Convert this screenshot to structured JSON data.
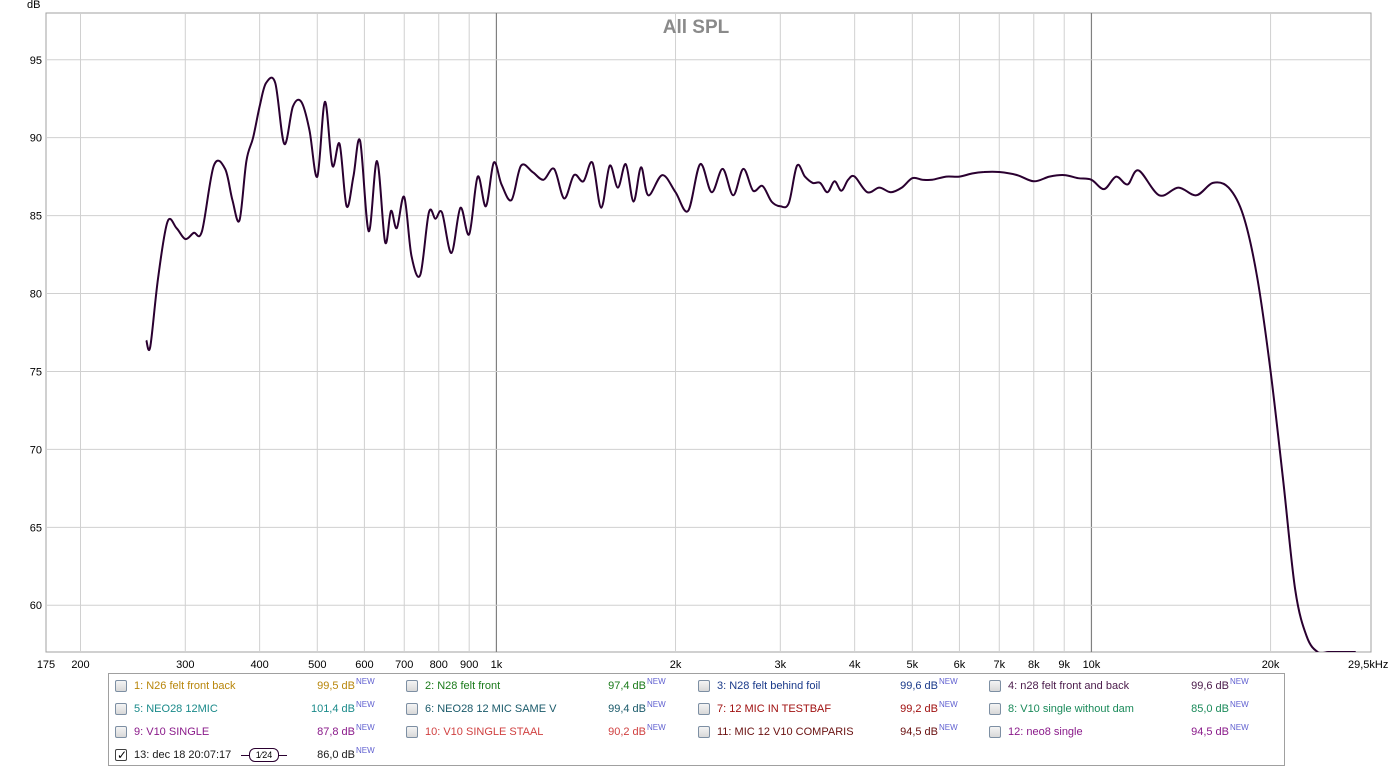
{
  "chart_data": {
    "type": "line",
    "title": "All SPL",
    "ylabel": "dB",
    "xlabel": "",
    "x_scale": "log",
    "xlim": [
      175,
      29500
    ],
    "ylim": [
      57,
      98
    ],
    "yticks": [
      60,
      65,
      70,
      75,
      80,
      85,
      90,
      95
    ],
    "xtick_values": [
      175,
      200,
      300,
      400,
      500,
      600,
      700,
      800,
      900,
      1000,
      2000,
      3000,
      4000,
      5000,
      6000,
      7000,
      8000,
      9000,
      10000,
      20000,
      29500
    ],
    "xtick_labels": [
      "175",
      "200",
      "300",
      "400",
      "500",
      "600",
      "700",
      "800",
      "900",
      "1k",
      "2k",
      "3k",
      "4k",
      "5k",
      "6k",
      "7k",
      "8k",
      "9k",
      "10k",
      "20k",
      "29,5kHz"
    ],
    "major_x": [
      1000,
      10000
    ],
    "grid": true,
    "series": [
      {
        "name": "13: dec 18 20:07:17",
        "color": "#2a0030",
        "x": [
          258,
          262,
          270,
          280,
          290,
          300,
          310,
          320,
          335,
          350,
          360,
          370,
          380,
          390,
          400,
          410,
          425,
          440,
          455,
          470,
          485,
          500,
          515,
          530,
          545,
          560,
          575,
          590,
          610,
          630,
          650,
          665,
          680,
          700,
          720,
          745,
          770,
          790,
          810,
          840,
          870,
          900,
          930,
          960,
          990,
          1020,
          1060,
          1100,
          1150,
          1200,
          1250,
          1300,
          1350,
          1400,
          1450,
          1500,
          1550,
          1600,
          1650,
          1700,
          1750,
          1800,
          1900,
          2000,
          2100,
          2200,
          2300,
          2400,
          2500,
          2600,
          2700,
          2800,
          2900,
          3000,
          3100,
          3200,
          3300,
          3400,
          3500,
          3600,
          3700,
          3800,
          3900,
          4000,
          4200,
          4400,
          4600,
          4800,
          5000,
          5200,
          5400,
          5700,
          6000,
          6300,
          6600,
          7000,
          7500,
          8000,
          8500,
          9000,
          9500,
          10000,
          10500,
          11000,
          11500,
          12000,
          13000,
          14000,
          15000,
          16000,
          17000,
          18000,
          19000,
          20000,
          21000,
          22000,
          23000,
          24000,
          25000,
          26000,
          27000,
          27800
        ],
        "y": [
          77.0,
          76.6,
          81.0,
          84.6,
          84.2,
          83.5,
          83.9,
          84.0,
          88.2,
          88.0,
          86.0,
          84.7,
          88.5,
          90.0,
          92.0,
          93.5,
          93.5,
          89.6,
          92.0,
          92.3,
          90.5,
          87.5,
          92.3,
          88.2,
          89.6,
          85.6,
          87.5,
          89.8,
          84.0,
          88.5,
          83.3,
          85.3,
          84.2,
          86.2,
          82.4,
          81.2,
          85.2,
          84.8,
          85.2,
          82.6,
          85.5,
          83.8,
          87.5,
          85.6,
          88.4,
          87.0,
          86.0,
          88.2,
          87.8,
          87.3,
          88.0,
          86.1,
          87.6,
          87.2,
          88.4,
          85.5,
          88.2,
          86.8,
          88.3,
          85.9,
          88.1,
          86.3,
          87.6,
          86.5,
          85.3,
          88.3,
          86.5,
          88.0,
          86.3,
          88.0,
          86.6,
          86.9,
          85.9,
          85.6,
          85.8,
          88.2,
          87.5,
          87.1,
          87.1,
          86.5,
          87.2,
          86.6,
          87.3,
          87.5,
          86.5,
          86.8,
          86.5,
          86.8,
          87.4,
          87.3,
          87.3,
          87.5,
          87.5,
          87.7,
          87.8,
          87.8,
          87.6,
          87.2,
          87.5,
          87.6,
          87.4,
          87.3,
          86.7,
          87.5,
          87.0,
          87.9,
          86.3,
          86.8,
          86.3,
          87.1,
          86.8,
          85.0,
          81.0,
          75.0,
          68.0,
          61.0,
          58.0,
          57.0,
          57.0,
          57.0,
          57.0,
          57.0
        ]
      }
    ]
  },
  "legend": [
    {
      "label": "1: N26 felt front back",
      "value": "99,5 dB",
      "new": "NEW",
      "color": "#b8860b",
      "checked": false
    },
    {
      "label": "2: N28 felt front",
      "value": "97,4 dB",
      "new": "NEW",
      "color": "#1a7a1a",
      "checked": false
    },
    {
      "label": "3: N28 felt behind foil",
      "value": "99,6 dB",
      "new": "NEW",
      "color": "#1a3a8a",
      "checked": false
    },
    {
      "label": "4: n28 felt front and back",
      "value": "99,6 dB",
      "new": "NEW",
      "color": "#4a1a4a",
      "checked": false
    },
    {
      "label": "5: NEO28 12MIC",
      "value": "101,4 dB",
      "new": "NEW",
      "color": "#1a8a8a",
      "checked": false
    },
    {
      "label": "6: NEO28 12 MIC SAME V",
      "value": "99,4 dB",
      "new": "NEW",
      "color": "#1a5a6a",
      "checked": false
    },
    {
      "label": "7: 12 MIC IN TESTBAF",
      "value": "99,2 dB",
      "new": "NEW",
      "color": "#a01010",
      "checked": false
    },
    {
      "label": "8: V10 single without dam",
      "value": "85,0 dB",
      "new": "NEW",
      "color": "#1a8a5a",
      "checked": false
    },
    {
      "label": "9: V10 SINGLE",
      "value": "87,8 dB",
      "new": "NEW",
      "color": "#8a1a8a",
      "checked": false
    },
    {
      "label": "10: V10 SINGLE STAAL",
      "value": "90,2 dB",
      "new": "NEW",
      "color": "#d04040",
      "checked": false
    },
    {
      "label": "11: MIC 12 V10 COMPARIS",
      "value": "94,5 dB",
      "new": "NEW",
      "color": "#6a1010",
      "checked": false
    },
    {
      "label": "12: neo8 single",
      "value": "94,5 dB",
      "new": "NEW",
      "color": "#8a1a8a",
      "checked": false
    },
    {
      "label": "13: dec 18 20:07:17",
      "value": "86,0 dB",
      "new": "NEW",
      "color": "#1a1a1a",
      "checked": true,
      "smoothing": "1⁄24"
    }
  ]
}
